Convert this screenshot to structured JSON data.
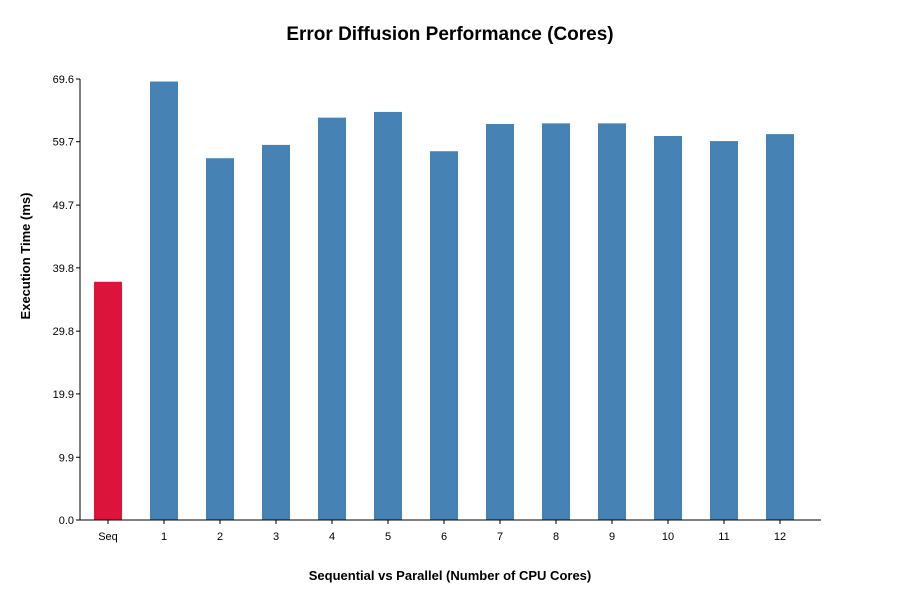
{
  "chart_data": {
    "type": "bar",
    "title": "Error Diffusion Performance (Cores)",
    "xlabel": "Sequential vs Parallel (Number of CPU Cores)",
    "ylabel": "Execution Time (ms)",
    "categories": [
      "Seq",
      "1",
      "2",
      "3",
      "4",
      "5",
      "6",
      "7",
      "8",
      "9",
      "10",
      "11",
      "12"
    ],
    "values": [
      37.6,
      69.2,
      57.1,
      59.2,
      63.5,
      64.4,
      58.2,
      62.5,
      62.6,
      62.6,
      60.6,
      59.8,
      60.9
    ],
    "yticks": [
      "0.0",
      "9.9",
      "19.9",
      "29.8",
      "39.8",
      "49.7",
      "59.7",
      "69.6"
    ],
    "ylim": [
      0,
      69.6
    ],
    "grid": false,
    "colors": {
      "sequential": "#dc143c",
      "parallel": "#4682b4"
    }
  }
}
